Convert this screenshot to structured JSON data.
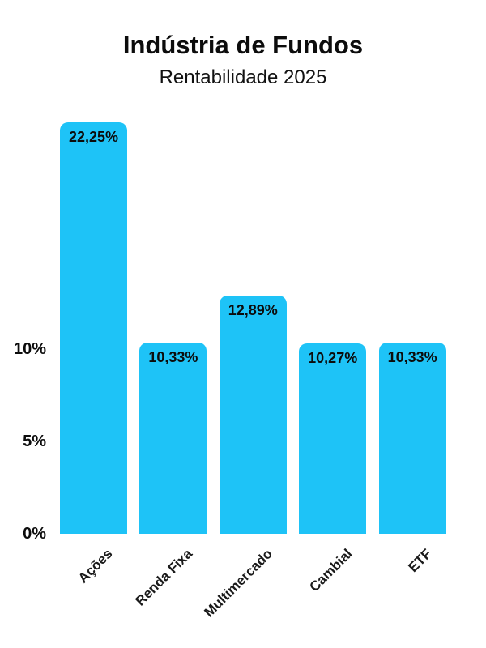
{
  "title": "Indústria de Fundos",
  "subtitle": "Rentabilidade 2025",
  "colors": {
    "bar": "#1EC3F7",
    "text": "#0C0C0C",
    "background": "#FFFFFF"
  },
  "chart_data": {
    "type": "bar",
    "title": "Indústria de Fundos",
    "subtitle": "Rentabilidade 2025",
    "categories": [
      "Ações",
      "Renda Fixa",
      "Multimercado",
      "Cambial",
      "ETF"
    ],
    "values": [
      22.25,
      10.33,
      12.89,
      10.27,
      10.33
    ],
    "value_labels": [
      "22,25%",
      "10,33%",
      "12,89%",
      "10,27%",
      "10,33%"
    ],
    "xlabel": "",
    "ylabel": "",
    "ylim": [
      0,
      23
    ],
    "yticks": [
      {
        "value": 0,
        "label": "0%"
      },
      {
        "value": 5,
        "label": "5%"
      },
      {
        "value": 10,
        "label": "10%"
      }
    ],
    "grid": false,
    "legend": null,
    "bar_color": "#1EC3F7",
    "decimal_separator": ","
  }
}
